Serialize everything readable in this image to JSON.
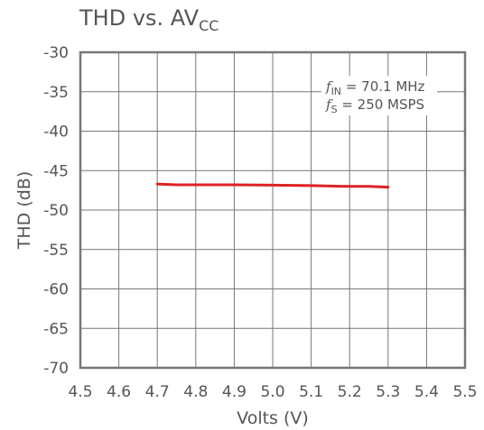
{
  "chart_data": {
    "type": "line",
    "title_main": "THD vs. AV",
    "title_sub": "CC",
    "xlabel": "Volts (V)",
    "ylabel": "THD (dB)",
    "xlim": [
      4.5,
      5.5
    ],
    "ylim": [
      -70,
      -30
    ],
    "x_ticks": [
      "4.5",
      "4.6",
      "4.7",
      "4.8",
      "4.9",
      "5.0",
      "5.1",
      "5.2",
      "5.3",
      "5.4",
      "5.5"
    ],
    "y_ticks": [
      "-30",
      "-35",
      "-40",
      "-45",
      "-50",
      "-55",
      "-60",
      "-65",
      "-70"
    ],
    "grid": true,
    "annotations": [
      {
        "symbol": "f",
        "subscript": "IN",
        "text": " = 70.1 MHz"
      },
      {
        "symbol": "f",
        "subscript": "S",
        "text": " = 250 MSPS"
      }
    ],
    "series": [
      {
        "color": "#dd2222",
        "x": [
          4.7,
          4.75,
          4.8,
          4.9,
          5.0,
          5.1,
          5.2,
          5.25,
          5.3
        ],
        "y": [
          -46.7,
          -46.8,
          -46.8,
          -46.8,
          -46.85,
          -46.9,
          -47.0,
          -47.0,
          -47.1
        ]
      }
    ]
  }
}
